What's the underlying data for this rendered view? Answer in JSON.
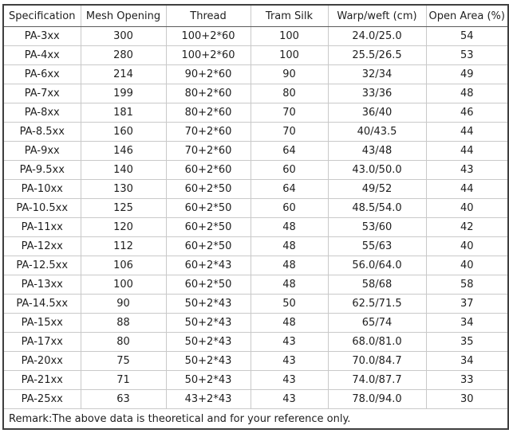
{
  "colors": {
    "background": "#ffffff",
    "outer_border": "#3f3f3f",
    "grid_line": "#c9c9c9",
    "header_separator": "#5a5a5a",
    "text": "#1e1e1e"
  },
  "table": {
    "columns": [
      "Specification",
      "Mesh Opening",
      "Thread",
      "Tram Silk",
      "Warp/weft  (cm)",
      "Open Area (%)"
    ],
    "rows": [
      [
        "PA-3xx",
        "300",
        "100+2*60",
        "100",
        "24.0/25.0",
        "54"
      ],
      [
        "PA-4xx",
        "280",
        "100+2*60",
        "100",
        "25.5/26.5",
        "53"
      ],
      [
        "PA-6xx",
        "214",
        "90+2*60",
        "90",
        "32/34",
        "49"
      ],
      [
        "PA-7xx",
        "199",
        "80+2*60",
        "80",
        "33/36",
        "48"
      ],
      [
        "PA-8xx",
        "181",
        "80+2*60",
        "70",
        "36/40",
        "46"
      ],
      [
        "PA-8.5xx",
        "160",
        "70+2*60",
        "70",
        "40/43.5",
        "44"
      ],
      [
        "PA-9xx",
        "146",
        "70+2*60",
        "64",
        "43/48",
        "44"
      ],
      [
        "PA-9.5xx",
        "140",
        "60+2*60",
        "60",
        "43.0/50.0",
        "43"
      ],
      [
        "PA-10xx",
        "130",
        "60+2*50",
        "64",
        "49/52",
        "44"
      ],
      [
        "PA-10.5xx",
        "125",
        "60+2*50",
        "60",
        "48.5/54.0",
        "40"
      ],
      [
        "PA-11xx",
        "120",
        "60+2*50",
        "48",
        "53/60",
        "42"
      ],
      [
        "PA-12xx",
        "112",
        "60+2*50",
        "48",
        "55/63",
        "40"
      ],
      [
        "PA-12.5xx",
        "106",
        "60+2*43",
        "48",
        "56.0/64.0",
        "40"
      ],
      [
        "PA-13xx",
        "100",
        "60+2*50",
        "48",
        "58/68",
        "58"
      ],
      [
        "PA-14.5xx",
        "90",
        "50+2*43",
        "50",
        "62.5/71.5",
        "37"
      ],
      [
        "PA-15xx",
        "88",
        "50+2*43",
        "48",
        "65/74",
        "34"
      ],
      [
        "PA-17xx",
        "80",
        "50+2*43",
        "43",
        "68.0/81.0",
        "35"
      ],
      [
        "PA-20xx",
        "75",
        "50+2*43",
        "43",
        "70.0/84.7",
        "34"
      ],
      [
        "PA-21xx",
        "71",
        "50+2*43",
        "43",
        "74.0/87.7",
        "33"
      ],
      [
        "PA-25xx",
        "63",
        "43+2*43",
        "43",
        "78.0/94.0",
        "30"
      ]
    ],
    "remark": "Remark:The above data is theoretical and for your reference only."
  },
  "chart_data": {
    "type": "table",
    "title": "",
    "columns": [
      "Specification",
      "Mesh Opening",
      "Thread",
      "Tram Silk",
      "Warp/weft (cm)",
      "Open Area (%)"
    ],
    "rows": [
      [
        "PA-3xx",
        300,
        "100+2*60",
        100,
        "24.0/25.0",
        54
      ],
      [
        "PA-4xx",
        280,
        "100+2*60",
        100,
        "25.5/26.5",
        53
      ],
      [
        "PA-6xx",
        214,
        "90+2*60",
        90,
        "32/34",
        49
      ],
      [
        "PA-7xx",
        199,
        "80+2*60",
        80,
        "33/36",
        48
      ],
      [
        "PA-8xx",
        181,
        "80+2*60",
        70,
        "36/40",
        46
      ],
      [
        "PA-8.5xx",
        160,
        "70+2*60",
        70,
        "40/43.5",
        44
      ],
      [
        "PA-9xx",
        146,
        "70+2*60",
        64,
        "43/48",
        44
      ],
      [
        "PA-9.5xx",
        140,
        "60+2*60",
        60,
        "43.0/50.0",
        43
      ],
      [
        "PA-10xx",
        130,
        "60+2*50",
        64,
        "49/52",
        44
      ],
      [
        "PA-10.5xx",
        125,
        "60+2*50",
        60,
        "48.5/54.0",
        40
      ],
      [
        "PA-11xx",
        120,
        "60+2*50",
        48,
        "53/60",
        42
      ],
      [
        "PA-12xx",
        112,
        "60+2*50",
        48,
        "55/63",
        40
      ],
      [
        "PA-12.5xx",
        106,
        "60+2*43",
        48,
        "56.0/64.0",
        40
      ],
      [
        "PA-13xx",
        100,
        "60+2*50",
        48,
        "58/68",
        58
      ],
      [
        "PA-14.5xx",
        90,
        "50+2*43",
        50,
        "62.5/71.5",
        37
      ],
      [
        "PA-15xx",
        88,
        "50+2*43",
        48,
        "65/74",
        34
      ],
      [
        "PA-17xx",
        80,
        "50+2*43",
        43,
        "68.0/81.0",
        35
      ],
      [
        "PA-20xx",
        75,
        "50+2*43",
        43,
        "70.0/84.7",
        34
      ],
      [
        "PA-21xx",
        71,
        "50+2*43",
        43,
        "74.0/87.7",
        33
      ],
      [
        "PA-25xx",
        63,
        "43+2*43",
        43,
        "78.0/94.0",
        30
      ]
    ],
    "remark": "Remark:The above data is theoretical and for your reference only."
  }
}
